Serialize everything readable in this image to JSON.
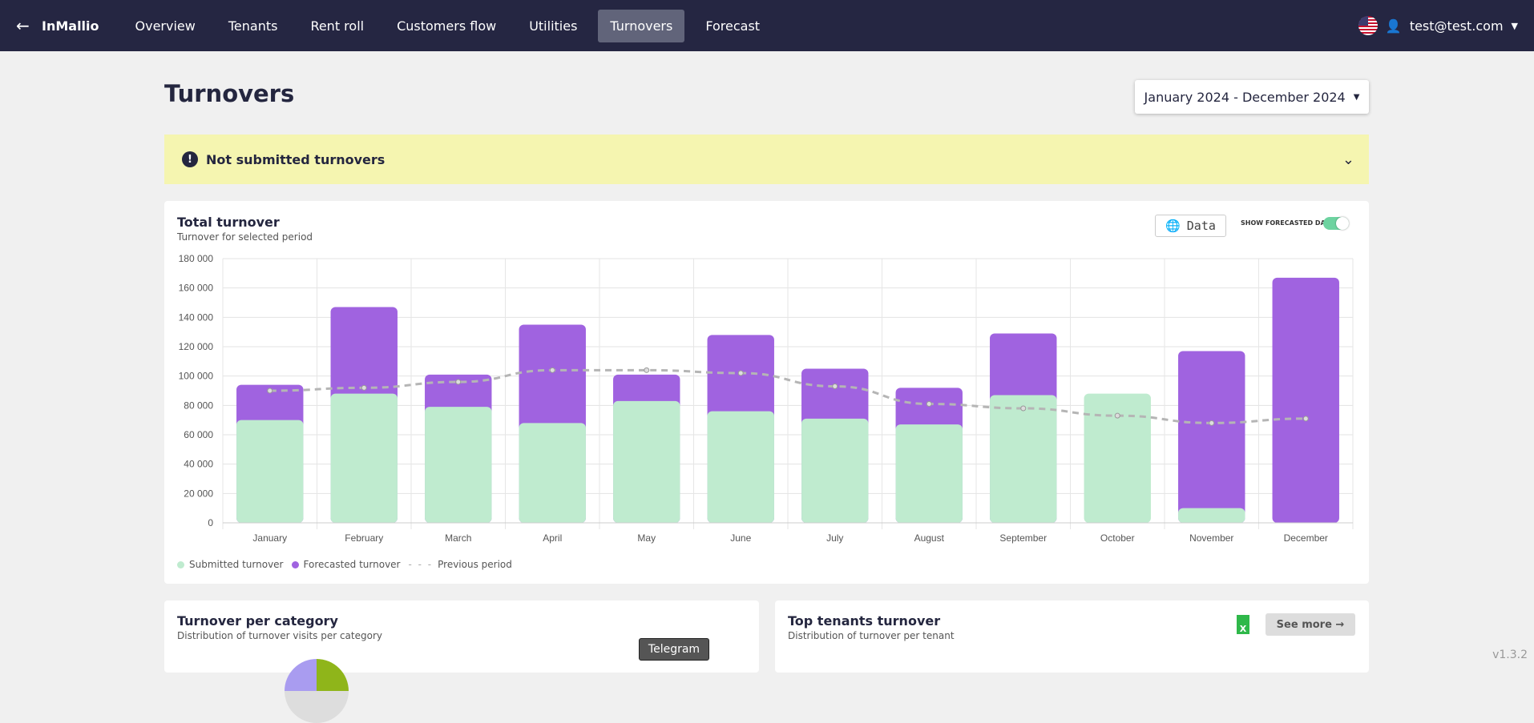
{
  "nav": {
    "brand": "InMallio",
    "items": [
      "Overview",
      "Tenants",
      "Rent roll",
      "Customers flow",
      "Utilities",
      "Turnovers",
      "Forecast"
    ],
    "active": "Turnovers",
    "user": "test@test.com"
  },
  "page": {
    "title": "Turnovers",
    "date_range": "January 2024 - December 2024"
  },
  "banner": {
    "label": "Not submitted turnovers"
  },
  "total_card": {
    "title": "Total turnover",
    "subtitle": "Turnover for selected period",
    "data_button": "Data",
    "show_forecasted": "SHOW FORECASTED DATA",
    "show_forecasted_on": true
  },
  "chart_data": {
    "type": "bar",
    "stacked": true,
    "categories": [
      "January",
      "February",
      "March",
      "April",
      "May",
      "June",
      "July",
      "August",
      "September",
      "October",
      "November",
      "December"
    ],
    "series": [
      {
        "name": "Submitted turnover",
        "color": "#bfebcf",
        "values": [
          70000,
          88000,
          79000,
          68000,
          83000,
          76000,
          71000,
          67000,
          87000,
          88000,
          10000,
          0
        ]
      },
      {
        "name": "Forecasted turnover",
        "color": "#a063e0",
        "values": [
          24000,
          59000,
          22000,
          67000,
          18000,
          52000,
          34000,
          25000,
          42000,
          0,
          107000,
          167000
        ]
      },
      {
        "name": "Previous period",
        "type": "line",
        "style": "dashed",
        "color": "#b5b5b5",
        "values": [
          90000,
          92000,
          96000,
          104000,
          104000,
          102000,
          93000,
          81000,
          78000,
          73000,
          68000,
          71000
        ]
      }
    ],
    "yticks": [
      "0",
      "20 000",
      "40 000",
      "60 000",
      "80 000",
      "100 000",
      "120 000",
      "140 000",
      "160 000",
      "180 000"
    ],
    "ylim": [
      0,
      180000
    ],
    "grid": true,
    "legend": "bottom-left"
  },
  "category_card": {
    "title": "Turnover per category",
    "subtitle": "Distribution of turnover visits per category",
    "tooltip": "Telegram"
  },
  "tenants_card": {
    "title": "Top tenants turnover",
    "subtitle": "Distribution of turnover per tenant",
    "see_more": "See more",
    "xls": "X"
  },
  "version": "v1.3.2"
}
